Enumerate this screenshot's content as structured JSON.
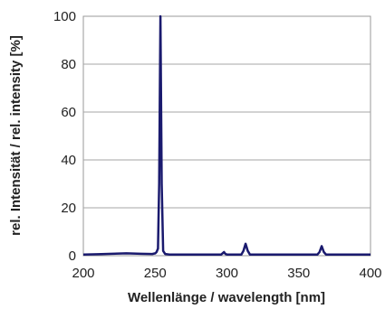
{
  "chart_data": {
    "type": "line",
    "title": "",
    "xlabel": "Wellenlänge / wavelength [nm]",
    "ylabel": "rel. Intensität / rel. intensity [%]",
    "xlim": [
      200,
      400
    ],
    "ylim": [
      0,
      100
    ],
    "x_ticks": [
      200,
      250,
      300,
      350,
      400
    ],
    "x_tick_labels": [
      "200",
      "250",
      "300",
      "350",
      "400"
    ],
    "y_ticks": [
      0,
      20,
      40,
      60,
      80,
      100
    ],
    "y_tick_labels": [
      "0",
      "20",
      "40",
      "60",
      "80",
      "100"
    ],
    "grid": "horizontal",
    "legend": "none",
    "series": [
      {
        "color": "#1a1a6e",
        "x": [
          200,
          210,
          220,
          230,
          240,
          248,
          250,
          251,
          252,
          252.8,
          253.7,
          254.6,
          255.6,
          257,
          260,
          270,
          280,
          290,
          296,
          298,
          299,
          300,
          302,
          305,
          310,
          311.5,
          313,
          314.5,
          316,
          320,
          330,
          340,
          350,
          360,
          363,
          364.5,
          366,
          367.5,
          369,
          375,
          380,
          390,
          400
        ],
        "y": [
          0.5,
          0.6,
          0.8,
          1,
          0.8,
          0.7,
          1,
          1.5,
          3,
          30,
          100,
          30,
          2,
          0.7,
          0.5,
          0.5,
          0.5,
          0.5,
          0.5,
          1.5,
          0.7,
          0.5,
          0.5,
          0.5,
          0.5,
          2,
          5,
          2,
          0.5,
          0.5,
          0.5,
          0.5,
          0.5,
          0.5,
          0.5,
          1.5,
          4,
          1.5,
          0.5,
          0.5,
          0.5,
          0.5,
          0.5
        ]
      }
    ]
  }
}
